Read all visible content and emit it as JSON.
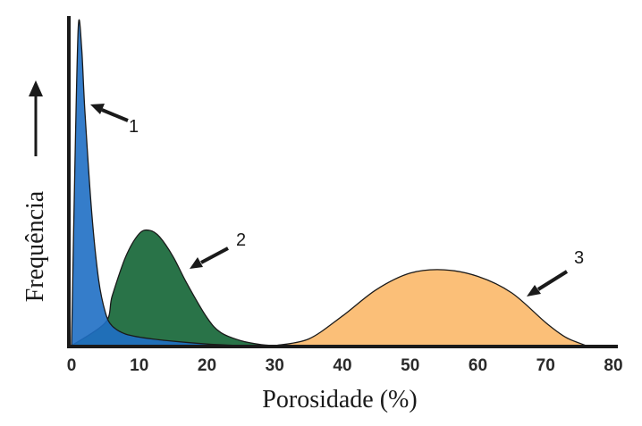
{
  "chart_data": {
    "type": "area",
    "xlabel": "Porosidade (%)",
    "ylabel": "Frequência",
    "xlim": [
      0,
      80
    ],
    "xticks": [
      "0",
      "10",
      "20",
      "30",
      "40",
      "50",
      "60",
      "70",
      "80"
    ],
    "grid": false,
    "legend": "none",
    "series": [
      {
        "label": "1",
        "color": "#1f6fc4",
        "x": [
          0,
          0.5,
          1,
          1.5,
          2,
          3,
          4,
          5,
          6,
          8,
          12,
          20,
          25
        ],
        "y": [
          0.0,
          0.55,
          0.97,
          0.9,
          0.7,
          0.4,
          0.2,
          0.1,
          0.06,
          0.035,
          0.02,
          0.005,
          0.0
        ]
      },
      {
        "label": "2",
        "color": "#1e6b3e",
        "x": [
          0,
          5,
          6,
          8,
          10,
          11.5,
          13,
          15,
          17,
          20,
          22,
          25,
          28,
          30
        ],
        "y": [
          0.0,
          0.07,
          0.15,
          0.27,
          0.34,
          0.35,
          0.33,
          0.27,
          0.19,
          0.085,
          0.04,
          0.015,
          0.003,
          0.0
        ]
      },
      {
        "label": "3",
        "color": "#fbbf78",
        "x": [
          30,
          35,
          40,
          45,
          50,
          55,
          60,
          65,
          70,
          73,
          76
        ],
        "y": [
          0.0,
          0.02,
          0.09,
          0.17,
          0.22,
          0.23,
          0.21,
          0.16,
          0.07,
          0.025,
          0.0
        ]
      }
    ]
  }
}
